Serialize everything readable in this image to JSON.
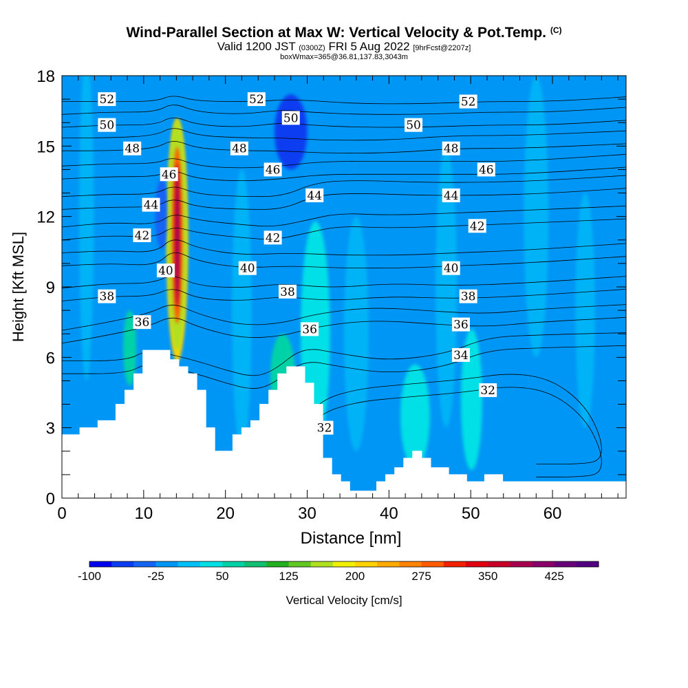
{
  "title": {
    "line1": "Wind-Parallel Section at Max W: Vertical Velocity & Pot.Temp.",
    "line1_mark": "(C)",
    "line2_a": "Valid 1200 JST",
    "line2_b": "(0300Z)",
    "line2_c": "FRI 5 Aug 2022",
    "line2_d": "[9hrFcst@2207z]",
    "line3": "boxWmax=365@36.81,137.83,3043m"
  },
  "chart_data": {
    "type": "heatmap",
    "xlabel": "Distance [nm]",
    "ylabel": "Height [Kft MSL]",
    "xlim": [
      0,
      69
    ],
    "ylim": [
      0,
      18
    ],
    "x_ticks": [
      0,
      10,
      20,
      30,
      40,
      50,
      60
    ],
    "y_ticks": [
      0,
      3,
      6,
      9,
      12,
      15,
      18
    ],
    "grid": false,
    "terrain": [
      [
        0,
        2.7
      ],
      [
        2.2,
        2.7
      ],
      [
        2.2,
        3.0
      ],
      [
        4.4,
        3.0
      ],
      [
        4.4,
        3.3
      ],
      [
        6.6,
        3.3
      ],
      [
        6.6,
        4.0
      ],
      [
        7.7,
        4.0
      ],
      [
        7.7,
        4.6
      ],
      [
        8.8,
        4.6
      ],
      [
        8.8,
        5.3
      ],
      [
        9.9,
        5.3
      ],
      [
        9.9,
        6.3
      ],
      [
        13.2,
        6.3
      ],
      [
        13.2,
        5.9
      ],
      [
        14.3,
        5.9
      ],
      [
        14.3,
        5.6
      ],
      [
        15.4,
        5.6
      ],
      [
        15.4,
        5.3
      ],
      [
        16.5,
        5.3
      ],
      [
        16.5,
        4.6
      ],
      [
        17.6,
        4.6
      ],
      [
        17.6,
        3.0
      ],
      [
        18.7,
        3.0
      ],
      [
        18.7,
        2.0
      ],
      [
        20.9,
        2.0
      ],
      [
        20.9,
        2.7
      ],
      [
        22.0,
        2.7
      ],
      [
        22.0,
        3.0
      ],
      [
        23.1,
        3.0
      ],
      [
        23.1,
        3.3
      ],
      [
        24.2,
        3.3
      ],
      [
        24.2,
        4.0
      ],
      [
        25.3,
        4.0
      ],
      [
        25.3,
        4.6
      ],
      [
        26.4,
        4.6
      ],
      [
        26.4,
        5.3
      ],
      [
        27.5,
        5.3
      ],
      [
        27.5,
        5.6
      ],
      [
        29.7,
        5.6
      ],
      [
        29.7,
        4.9
      ],
      [
        30.8,
        4.9
      ],
      [
        30.8,
        4.0
      ],
      [
        31.9,
        4.0
      ],
      [
        31.9,
        1.7
      ],
      [
        33.0,
        1.7
      ],
      [
        33.0,
        1.0
      ],
      [
        34.1,
        1.0
      ],
      [
        34.1,
        0.7
      ],
      [
        35.2,
        0.7
      ],
      [
        35.2,
        0.3
      ],
      [
        38.5,
        0.3
      ],
      [
        38.5,
        0.7
      ],
      [
        39.6,
        0.7
      ],
      [
        39.6,
        1.0
      ],
      [
        40.7,
        1.0
      ],
      [
        40.7,
        1.3
      ],
      [
        41.8,
        1.3
      ],
      [
        41.8,
        1.7
      ],
      [
        42.9,
        1.7
      ],
      [
        42.9,
        2.0
      ],
      [
        44.0,
        2.0
      ],
      [
        44.0,
        1.7
      ],
      [
        45.1,
        1.7
      ],
      [
        45.1,
        1.3
      ],
      [
        47.3,
        1.3
      ],
      [
        47.3,
        1.0
      ],
      [
        49.5,
        1.0
      ],
      [
        49.5,
        0.7
      ],
      [
        51.7,
        0.7
      ],
      [
        51.7,
        1.0
      ],
      [
        53.9,
        1.0
      ],
      [
        53.9,
        0.7
      ],
      [
        69,
        0.7
      ]
    ],
    "vertical_velocity_regions": [
      {
        "x": 14.1,
        "y": 11.0,
        "rx": 1.3,
        "ry": 5.2,
        "w": 215
      },
      {
        "x": 14.0,
        "y": 11.2,
        "rx": 0.7,
        "ry": 3.8,
        "w": 340
      },
      {
        "x": 13.9,
        "y": 11.6,
        "rx": 0.35,
        "ry": 2.2,
        "w": 380
      },
      {
        "x": 28.0,
        "y": 15.6,
        "rx": 2.0,
        "ry": 1.6,
        "w": -60
      },
      {
        "x": 12.2,
        "y": 12.1,
        "rx": 0.8,
        "ry": 1.5,
        "w": -30
      },
      {
        "x": 31.0,
        "y": 7.0,
        "rx": 1.8,
        "ry": 4.8,
        "w": 40
      },
      {
        "x": 43.2,
        "y": 3.5,
        "rx": 1.8,
        "ry": 2.2,
        "w": 40
      },
      {
        "x": 50.1,
        "y": 4.2,
        "rx": 1.3,
        "ry": 3.0,
        "w": 40
      },
      {
        "x": 27.0,
        "y": 5.2,
        "rx": 1.5,
        "ry": 1.8,
        "w": 55
      },
      {
        "x": 8.3,
        "y": 6.4,
        "rx": 0.8,
        "ry": 1.6,
        "w": 55
      },
      {
        "x": 19.5,
        "y": 4.0,
        "rx": 0.8,
        "ry": 2.0,
        "w": -20
      }
    ],
    "theta_contours": [
      {
        "level": 32,
        "path": [
          [
            29.3,
            2.5
          ],
          [
            31.5,
            3.6
          ],
          [
            36.0,
            4.1
          ],
          [
            42.0,
            4.3
          ],
          [
            49.0,
            4.5
          ],
          [
            55.0,
            4.8
          ],
          [
            60.0,
            4.5
          ],
          [
            64.0,
            3.4
          ],
          [
            66.0,
            2.0
          ],
          [
            66.0,
            1.1
          ],
          [
            64.0,
            0.9
          ],
          [
            58.0,
            0.9
          ]
        ],
        "labels": [
          [
            52.1,
            4.6
          ],
          [
            32.1,
            3.0
          ]
        ]
      },
      {
        "level": 34,
        "path": [
          [
            0,
            5.3
          ],
          [
            8.0,
            5.3
          ],
          [
            10.5,
            5.8
          ],
          [
            16.5,
            5.3
          ],
          [
            20.0,
            4.9
          ],
          [
            23.5,
            4.6
          ],
          [
            26.0,
            4.9
          ],
          [
            29.5,
            5.9
          ],
          [
            34.0,
            5.6
          ],
          [
            40.0,
            5.3
          ],
          [
            47.0,
            5.6
          ],
          [
            52.0,
            6.3
          ],
          [
            58.0,
            6.4
          ],
          [
            69,
            6.5
          ]
        ],
        "labels": [
          [
            48.8,
            6.1
          ]
        ]
      },
      {
        "level": 36,
        "path": [
          [
            0,
            6.6
          ],
          [
            5.0,
            6.9
          ],
          [
            10.5,
            7.3
          ],
          [
            13.6,
            7.8
          ],
          [
            16.5,
            7.3
          ],
          [
            22.0,
            6.8
          ],
          [
            27.0,
            6.9
          ],
          [
            31.0,
            7.3
          ],
          [
            38.0,
            7.6
          ],
          [
            46.0,
            7.4
          ],
          [
            52.0,
            7.3
          ],
          [
            58.0,
            7.5
          ],
          [
            69,
            7.7
          ]
        ],
        "labels": [
          [
            9.8,
            7.5
          ],
          [
            30.3,
            7.2
          ],
          [
            48.8,
            7.4
          ]
        ]
      },
      {
        "level": 38,
        "path": [
          [
            0,
            8.4
          ],
          [
            6.0,
            8.6
          ],
          [
            11.0,
            8.6
          ],
          [
            13.6,
            9.0
          ],
          [
            16.5,
            8.5
          ],
          [
            22.0,
            8.4
          ],
          [
            27.0,
            8.6
          ],
          [
            33.0,
            8.4
          ],
          [
            40.0,
            8.6
          ],
          [
            48.0,
            8.5
          ],
          [
            56.0,
            8.6
          ],
          [
            69,
            8.9
          ]
        ],
        "labels": [
          [
            5.5,
            8.6
          ],
          [
            27.6,
            8.8
          ],
          [
            49.7,
            8.6
          ]
        ]
      },
      {
        "level": 40,
        "path": [
          [
            0,
            9.9
          ],
          [
            6.0,
            10.0
          ],
          [
            11.5,
            9.9
          ],
          [
            13.6,
            10.6
          ],
          [
            16.5,
            10.1
          ],
          [
            22.0,
            9.8
          ],
          [
            28.0,
            9.9
          ],
          [
            34.0,
            9.8
          ],
          [
            42.0,
            9.8
          ],
          [
            48.0,
            9.9
          ],
          [
            56.0,
            10.0
          ],
          [
            69,
            10.3
          ]
        ],
        "labels": [
          [
            12.7,
            9.7
          ],
          [
            22.7,
            9.8
          ],
          [
            47.6,
            9.8
          ]
        ]
      },
      {
        "level": 42,
        "path": [
          [
            0,
            11.0
          ],
          [
            6.0,
            11.2
          ],
          [
            11.5,
            11.1
          ],
          [
            13.6,
            11.6
          ],
          [
            16.5,
            11.3
          ],
          [
            22.0,
            11.1
          ],
          [
            26.0,
            11.0
          ],
          [
            30.0,
            11.3
          ],
          [
            34.0,
            11.6
          ],
          [
            40.0,
            11.5
          ],
          [
            48.0,
            11.6
          ],
          [
            56.0,
            11.7
          ],
          [
            69,
            11.9
          ]
        ],
        "labels": [
          [
            9.8,
            11.2
          ],
          [
            25.8,
            11.1
          ],
          [
            50.8,
            11.6
          ]
        ]
      },
      {
        "level": 44,
        "path": [
          [
            0,
            12.3
          ],
          [
            6.0,
            12.4
          ],
          [
            11.5,
            12.4
          ],
          [
            13.6,
            12.8
          ],
          [
            16.5,
            12.4
          ],
          [
            22.0,
            12.3
          ],
          [
            27.0,
            12.3
          ],
          [
            31.0,
            12.9
          ],
          [
            36.0,
            13.0
          ],
          [
            44.0,
            12.9
          ],
          [
            52.0,
            12.9
          ],
          [
            60.0,
            13.0
          ],
          [
            69,
            13.2
          ]
        ],
        "labels": [
          [
            10.9,
            12.5
          ],
          [
            30.9,
            12.9
          ],
          [
            47.6,
            12.9
          ]
        ]
      },
      {
        "level": 46,
        "path": [
          [
            0,
            13.6
          ],
          [
            6.0,
            13.7
          ],
          [
            11.5,
            13.7
          ],
          [
            13.6,
            14.0
          ],
          [
            16.5,
            13.6
          ],
          [
            22.0,
            13.5
          ],
          [
            27.0,
            13.6
          ],
          [
            32.0,
            13.8
          ],
          [
            40.0,
            13.8
          ],
          [
            48.0,
            13.8
          ],
          [
            56.0,
            13.8
          ],
          [
            69,
            14.1
          ]
        ],
        "labels": [
          [
            13.1,
            13.8
          ],
          [
            25.8,
            14.0
          ],
          [
            51.9,
            14.0
          ]
        ]
      },
      {
        "level": 48,
        "path": [
          [
            0,
            14.8
          ],
          [
            6.0,
            14.8
          ],
          [
            11.5,
            14.9
          ],
          [
            13.6,
            15.3
          ],
          [
            16.5,
            14.9
          ],
          [
            22.0,
            14.8
          ],
          [
            27.0,
            14.8
          ],
          [
            32.0,
            14.7
          ],
          [
            40.0,
            14.7
          ],
          [
            48.0,
            14.9
          ],
          [
            56.0,
            14.9
          ],
          [
            69,
            15.1
          ]
        ],
        "labels": [
          [
            8.6,
            14.9
          ],
          [
            21.7,
            14.9
          ],
          [
            47.6,
            14.9
          ]
        ]
      },
      {
        "level": 50,
        "path": [
          [
            0,
            15.8
          ],
          [
            6.0,
            15.9
          ],
          [
            11.5,
            15.9
          ],
          [
            13.6,
            16.3
          ],
          [
            16.5,
            15.9
          ],
          [
            22.0,
            15.8
          ],
          [
            27.0,
            16.0
          ],
          [
            30.0,
            15.9
          ],
          [
            36.0,
            15.8
          ],
          [
            44.0,
            15.8
          ],
          [
            52.0,
            15.9
          ],
          [
            60.0,
            15.9
          ],
          [
            69,
            16.1
          ]
        ],
        "labels": [
          [
            5.5,
            15.9
          ],
          [
            28.0,
            16.2
          ],
          [
            43.0,
            15.9
          ]
        ]
      },
      {
        "level": 52,
        "path": [
          [
            0,
            16.9
          ],
          [
            6.0,
            16.9
          ],
          [
            11.5,
            16.9
          ],
          [
            13.6,
            17.2
          ],
          [
            16.5,
            16.9
          ],
          [
            24.0,
            16.9
          ],
          [
            28.0,
            17.0
          ],
          [
            36.0,
            16.8
          ],
          [
            44.0,
            16.8
          ],
          [
            52.0,
            16.9
          ],
          [
            60.0,
            16.9
          ],
          [
            69,
            17.1
          ]
        ],
        "labels": [
          [
            5.5,
            17.0
          ],
          [
            23.8,
            17.0
          ],
          [
            49.7,
            16.9
          ]
        ]
      }
    ],
    "colorbar": {
      "title": "Vertical Velocity [cm/s]",
      "tick_labels": [
        "-100",
        "-25",
        "50",
        "125",
        "200",
        "275",
        "350",
        "425"
      ],
      "tick_values": [
        -100,
        -25,
        50,
        125,
        200,
        275,
        350,
        425
      ],
      "min": -100,
      "max": 475,
      "step": 25,
      "colors": [
        "#0000ee",
        "#0a3cf0",
        "#1464f5",
        "#0096f5",
        "#00c0f8",
        "#00e0e6",
        "#00d2a8",
        "#10c070",
        "#20b020",
        "#60c820",
        "#b0e020",
        "#f0f000",
        "#ffd200",
        "#ffaa00",
        "#ff8200",
        "#ff5a00",
        "#f02000",
        "#e00010",
        "#c80028",
        "#a80050",
        "#880068",
        "#680078",
        "#500080"
      ]
    }
  }
}
